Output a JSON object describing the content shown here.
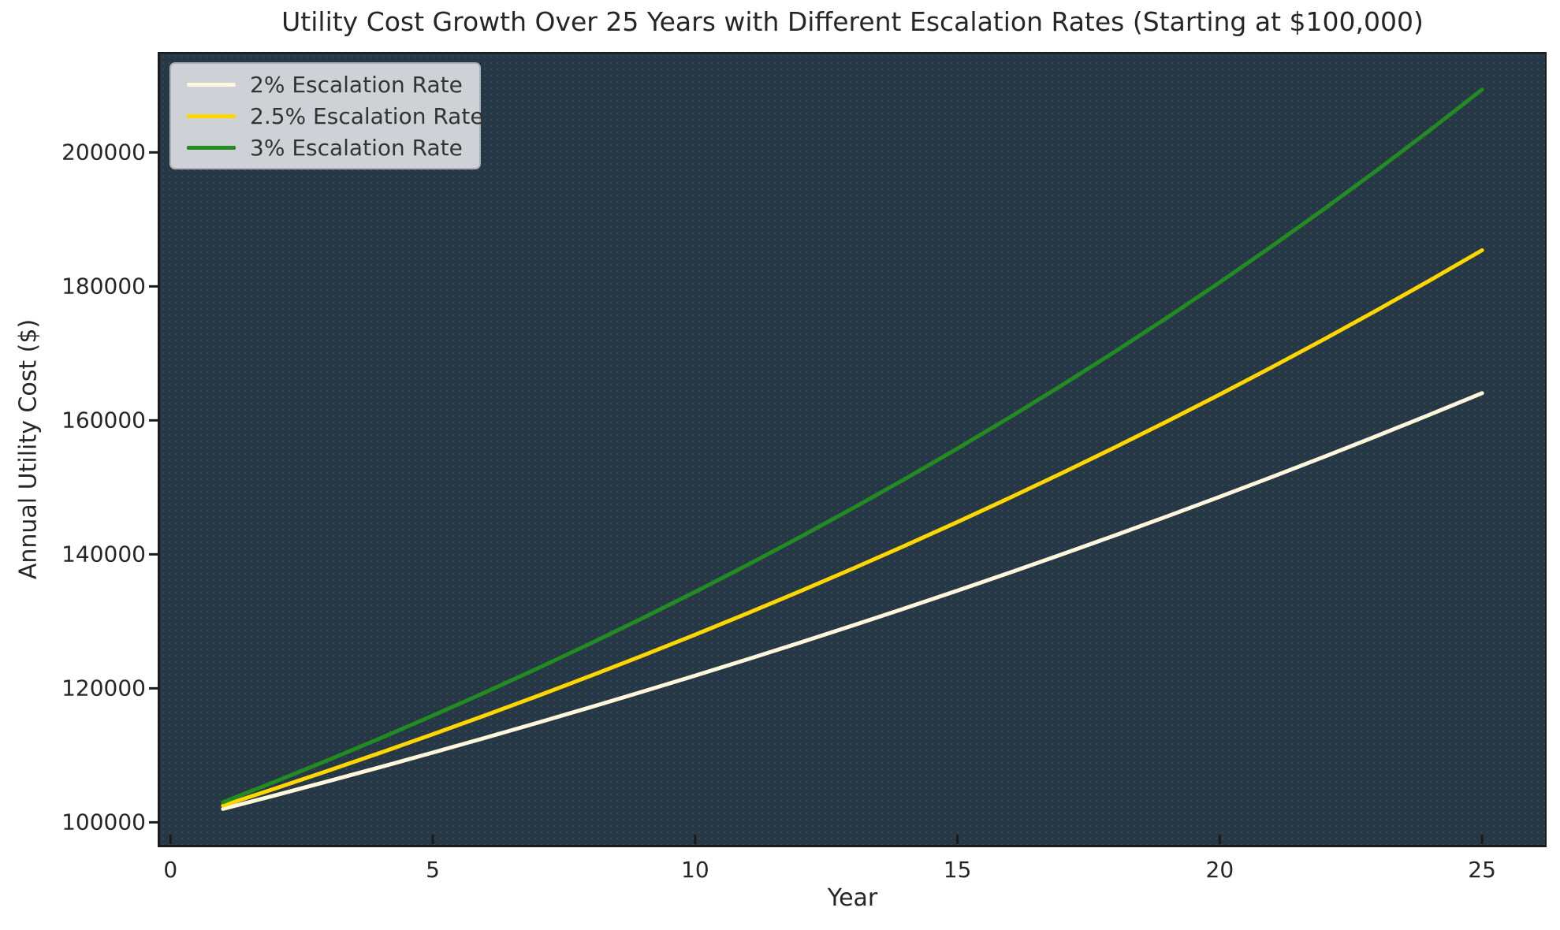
{
  "chart_data": {
    "type": "line",
    "title": "Utility Cost Growth Over 25 Years with Different Escalation Rates (Starting at $100,000)",
    "xlabel": "Year",
    "ylabel": "Annual Utility Cost ($)",
    "x": [
      1,
      2,
      3,
      4,
      5,
      6,
      7,
      8,
      9,
      10,
      11,
      12,
      13,
      14,
      15,
      16,
      17,
      18,
      19,
      20,
      21,
      22,
      23,
      24,
      25
    ],
    "series": [
      {
        "name": "2% Escalation Rate",
        "color": "#FFF8DC",
        "values": [
          102000,
          104040,
          106120.8,
          108243.22,
          110408.08,
          112616.24,
          114868.57,
          117165.94,
          119509.26,
          121899.44,
          124337.43,
          126824.18,
          129360.66,
          131947.87,
          134586.83,
          137278.57,
          140024.14,
          142824.62,
          145681.11,
          148594.74,
          151566.63,
          154597.97,
          157689.92,
          160843.72,
          164060.6
        ]
      },
      {
        "name": "2.5% Escalation Rate",
        "color": "#FFD700",
        "values": [
          102500,
          105062.5,
          107689.06,
          110381.29,
          113140.82,
          115969.34,
          118868.58,
          121840.29,
          124886.3,
          128008.45,
          131208.66,
          134488.88,
          137851.1,
          141297.38,
          144829.82,
          148450.56,
          152161.83,
          155965.87,
          159865.02,
          163861.64,
          167958.19,
          172157.14,
          176461.07,
          180872.59,
          185394.41
        ]
      },
      {
        "name": "3% Escalation Rate",
        "color": "#228B22",
        "values": [
          103000,
          106090,
          109272.7,
          112550.88,
          115927.41,
          119405.23,
          122987.39,
          126677.01,
          130477.32,
          134391.64,
          138423.39,
          142576.09,
          146853.37,
          151258.97,
          155796.74,
          160470.64,
          165284.76,
          170243.31,
          175350.61,
          180611.12,
          186029.46,
          191610.34,
          197358.65,
          203279.41,
          209377.79
        ]
      }
    ],
    "xlim": [
      -0.2,
      26.2
    ],
    "ylim": [
      96631,
      214747
    ],
    "x_ticks": [
      0,
      5,
      10,
      15,
      20,
      25
    ],
    "y_ticks": [
      100000,
      120000,
      140000,
      160000,
      180000,
      200000
    ],
    "grid": false,
    "legend_position": "upper-left",
    "line_width": 5,
    "plot_background": "#263745",
    "figure_background": "#ffffff",
    "axis_color": "#1a1a1a",
    "text_color": "#262626"
  }
}
